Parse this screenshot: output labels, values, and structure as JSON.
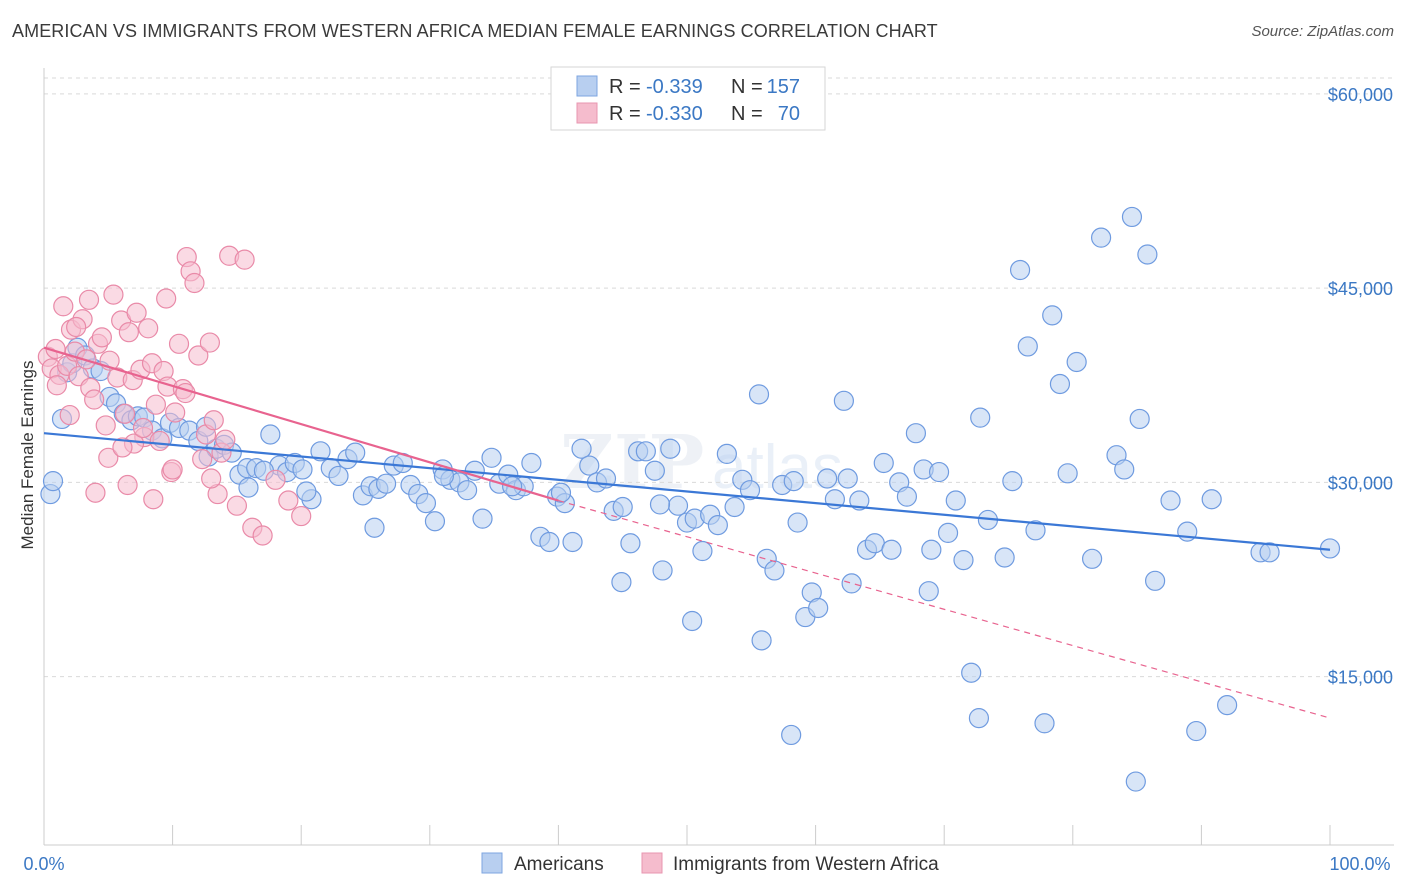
{
  "title": "AMERICAN VS IMMIGRANTS FROM WESTERN AFRICA MEDIAN FEMALE EARNINGS CORRELATION CHART",
  "source": "Source: ZipAtlas.com",
  "colors": {
    "blue": "#3b78d6",
    "blue_fill": "#b8cff0",
    "pink": "#e8638f",
    "pink_fill": "#f5bccd",
    "tick_label": "#3b78c4",
    "grid": "#d9d9d9"
  },
  "legend": {
    "r_label": "R =",
    "n_label": "N =",
    "rows": [
      {
        "series": "blue",
        "r": "-0.339",
        "n": "157"
      },
      {
        "series": "pink",
        "r": "-0.330",
        "n": "70"
      }
    ]
  },
  "bottom_legend": [
    {
      "series": "blue",
      "label": "Americans"
    },
    {
      "series": "pink",
      "label": "Immigrants from Western Africa"
    }
  ],
  "chart_data": {
    "type": "scatter",
    "ylabel": "Median Female Earnings",
    "xlim": [
      0,
      100
    ],
    "ylim": [
      2000,
      62000
    ],
    "x_tick_labels": [
      "0.0%",
      "100.0%"
    ],
    "y_ticks": [
      15000,
      30000,
      45000,
      60000
    ],
    "y_tick_labels": [
      "$15,000",
      "$30,000",
      "$45,000",
      "$60,000"
    ],
    "grid": "horizontal dashed",
    "legend_position": "top-center",
    "series": [
      {
        "name": "Americans",
        "color": "blue",
        "trend": {
          "x": [
            0,
            100
          ],
          "y": [
            33800,
            24800
          ],
          "style": "solid"
        },
        "points": [
          [
            0.5,
            29100
          ],
          [
            0.7,
            30100
          ],
          [
            1.4,
            34900
          ],
          [
            1.8,
            38500
          ],
          [
            2.2,
            39200
          ],
          [
            2.6,
            40400
          ],
          [
            3.2,
            39800
          ],
          [
            3.8,
            38800
          ],
          [
            4.4,
            38600
          ],
          [
            5.1,
            36600
          ],
          [
            5.6,
            36100
          ],
          [
            6.2,
            35300
          ],
          [
            6.8,
            34800
          ],
          [
            7.3,
            35100
          ],
          [
            7.8,
            35000
          ],
          [
            8.4,
            34000
          ],
          [
            9.2,
            33400
          ],
          [
            9.8,
            34600
          ],
          [
            10.5,
            34200
          ],
          [
            11.3,
            34000
          ],
          [
            12.0,
            33200
          ],
          [
            12.8,
            32000
          ],
          [
            13.4,
            32600
          ],
          [
            14.0,
            32900
          ],
          [
            14.6,
            32300
          ],
          [
            15.2,
            30600
          ],
          [
            15.8,
            31100
          ],
          [
            16.5,
            31100
          ],
          [
            17.6,
            33700
          ],
          [
            18.3,
            31300
          ],
          [
            18.9,
            30800
          ],
          [
            19.5,
            31500
          ],
          [
            20.1,
            31000
          ],
          [
            20.8,
            28700
          ],
          [
            21.5,
            32400
          ],
          [
            22.3,
            31100
          ],
          [
            22.9,
            30500
          ],
          [
            23.6,
            31800
          ],
          [
            24.2,
            32300
          ],
          [
            24.8,
            29000
          ],
          [
            25.4,
            29700
          ],
          [
            26.0,
            29500
          ],
          [
            26.6,
            29900
          ],
          [
            27.2,
            31300
          ],
          [
            27.9,
            31500
          ],
          [
            28.5,
            29800
          ],
          [
            29.1,
            29100
          ],
          [
            29.7,
            28400
          ],
          [
            30.4,
            27000
          ],
          [
            31.0,
            31000
          ],
          [
            31.6,
            30200
          ],
          [
            32.3,
            30000
          ],
          [
            32.9,
            29400
          ],
          [
            33.5,
            30900
          ],
          [
            34.1,
            27200
          ],
          [
            34.8,
            31900
          ],
          [
            35.4,
            29900
          ],
          [
            36.1,
            30600
          ],
          [
            36.7,
            29400
          ],
          [
            37.3,
            29700
          ],
          [
            37.9,
            31500
          ],
          [
            38.6,
            25800
          ],
          [
            39.3,
            25400
          ],
          [
            39.9,
            28900
          ],
          [
            40.5,
            28400
          ],
          [
            41.1,
            25400
          ],
          [
            41.8,
            32600
          ],
          [
            42.4,
            31300
          ],
          [
            43.0,
            30000
          ],
          [
            43.7,
            30300
          ],
          [
            44.3,
            27800
          ],
          [
            45.0,
            28100
          ],
          [
            45.6,
            25300
          ],
          [
            46.2,
            32400
          ],
          [
            46.8,
            32400
          ],
          [
            47.5,
            30900
          ],
          [
            48.1,
            23200
          ],
          [
            48.7,
            32600
          ],
          [
            49.3,
            28200
          ],
          [
            50.0,
            26900
          ],
          [
            50.6,
            27200
          ],
          [
            51.2,
            24700
          ],
          [
            51.8,
            27500
          ],
          [
            52.4,
            26700
          ],
          [
            53.1,
            32200
          ],
          [
            53.7,
            28100
          ],
          [
            54.3,
            30200
          ],
          [
            54.9,
            29400
          ],
          [
            55.6,
            36800
          ],
          [
            56.2,
            24100
          ],
          [
            56.8,
            23200
          ],
          [
            57.4,
            29800
          ],
          [
            58.1,
            10500
          ],
          [
            58.6,
            26900
          ],
          [
            59.2,
            19600
          ],
          [
            59.7,
            21500
          ],
          [
            60.2,
            20300
          ],
          [
            60.9,
            30300
          ],
          [
            61.5,
            28700
          ],
          [
            62.2,
            36300
          ],
          [
            62.8,
            22200
          ],
          [
            63.4,
            28600
          ],
          [
            64.0,
            24800
          ],
          [
            64.6,
            25300
          ],
          [
            65.3,
            31500
          ],
          [
            65.9,
            24800
          ],
          [
            66.5,
            30000
          ],
          [
            67.1,
            28900
          ],
          [
            67.8,
            33800
          ],
          [
            68.4,
            31000
          ],
          [
            69.0,
            24800
          ],
          [
            69.6,
            30800
          ],
          [
            70.3,
            26100
          ],
          [
            70.9,
            28600
          ],
          [
            71.5,
            24000
          ],
          [
            72.1,
            15300
          ],
          [
            72.8,
            35000
          ],
          [
            73.4,
            27100
          ],
          [
            74.7,
            24200
          ],
          [
            75.3,
            30100
          ],
          [
            75.9,
            46400
          ],
          [
            76.5,
            40500
          ],
          [
            77.1,
            26300
          ],
          [
            77.8,
            11400
          ],
          [
            78.4,
            42900
          ],
          [
            79.0,
            37600
          ],
          [
            79.6,
            30700
          ],
          [
            80.3,
            39300
          ],
          [
            81.5,
            24100
          ],
          [
            82.2,
            48900
          ],
          [
            83.4,
            32100
          ],
          [
            84.0,
            31000
          ],
          [
            84.6,
            50500
          ],
          [
            85.2,
            34900
          ],
          [
            85.8,
            47600
          ],
          [
            86.4,
            22400
          ],
          [
            87.6,
            28600
          ],
          [
            88.9,
            26200
          ],
          [
            89.6,
            10800
          ],
          [
            90.8,
            28700
          ],
          [
            92.0,
            12800
          ],
          [
            94.6,
            24600
          ],
          [
            95.3,
            24600
          ],
          [
            100.0,
            24900
          ],
          [
            62.5,
            30300
          ],
          [
            44.9,
            22300
          ],
          [
            50.4,
            19300
          ],
          [
            55.8,
            17800
          ],
          [
            68.8,
            21600
          ],
          [
            84.9,
            6900
          ],
          [
            72.7,
            11800
          ],
          [
            40.2,
            29200
          ],
          [
            36.4,
            29700
          ],
          [
            20.4,
            29300
          ],
          [
            15.9,
            29600
          ],
          [
            12.6,
            34300
          ],
          [
            58.3,
            30100
          ],
          [
            47.9,
            28300
          ],
          [
            31.1,
            30500
          ],
          [
            25.7,
            26500
          ],
          [
            17.1,
            30900
          ]
        ]
      },
      {
        "name": "Immigrants from Western Africa",
        "color": "pink",
        "trend": {
          "x": [
            0,
            40
          ],
          "y": [
            40400,
            28600
          ],
          "style": "solid"
        },
        "trend_extension": {
          "x": [
            40,
            100
          ],
          "y": [
            28600,
            11800
          ],
          "style": "dashed"
        },
        "points": [
          [
            0.3,
            39700
          ],
          [
            0.6,
            38800
          ],
          [
            0.9,
            40300
          ],
          [
            1.2,
            38300
          ],
          [
            1.5,
            43600
          ],
          [
            1.8,
            39000
          ],
          [
            2.1,
            41800
          ],
          [
            2.4,
            40100
          ],
          [
            2.7,
            38200
          ],
          [
            3.0,
            42600
          ],
          [
            3.3,
            39500
          ],
          [
            3.6,
            37300
          ],
          [
            3.9,
            36400
          ],
          [
            4.2,
            40700
          ],
          [
            4.5,
            41200
          ],
          [
            4.8,
            34400
          ],
          [
            5.1,
            39400
          ],
          [
            5.4,
            44500
          ],
          [
            5.7,
            38100
          ],
          [
            6.0,
            42500
          ],
          [
            6.3,
            35300
          ],
          [
            6.6,
            41600
          ],
          [
            6.9,
            37900
          ],
          [
            7.2,
            43100
          ],
          [
            7.5,
            38700
          ],
          [
            7.8,
            33500
          ],
          [
            8.1,
            41900
          ],
          [
            8.4,
            39200
          ],
          [
            8.7,
            36000
          ],
          [
            9.0,
            33200
          ],
          [
            9.3,
            38600
          ],
          [
            9.6,
            37400
          ],
          [
            9.9,
            30800
          ],
          [
            10.2,
            35400
          ],
          [
            10.5,
            40700
          ],
          [
            10.8,
            37200
          ],
          [
            11.1,
            47400
          ],
          [
            11.4,
            46300
          ],
          [
            11.7,
            45400
          ],
          [
            12.0,
            39800
          ],
          [
            12.3,
            31800
          ],
          [
            12.6,
            33700
          ],
          [
            12.9,
            40800
          ],
          [
            13.2,
            34800
          ],
          [
            13.5,
            29100
          ],
          [
            13.8,
            32300
          ],
          [
            14.1,
            33300
          ],
          [
            14.4,
            47500
          ],
          [
            15.0,
            28200
          ],
          [
            15.6,
            47200
          ],
          [
            16.2,
            26500
          ],
          [
            4.0,
            29200
          ],
          [
            5.0,
            31900
          ],
          [
            6.5,
            29800
          ],
          [
            7.0,
            33000
          ],
          [
            8.5,
            28700
          ],
          [
            9.5,
            44200
          ],
          [
            3.5,
            44100
          ],
          [
            2.5,
            42000
          ],
          [
            1.0,
            37500
          ],
          [
            2.0,
            35200
          ],
          [
            6.1,
            32700
          ],
          [
            7.7,
            34200
          ],
          [
            10.0,
            31000
          ],
          [
            11.0,
            36900
          ],
          [
            13.0,
            30300
          ],
          [
            17.0,
            25900
          ],
          [
            18.0,
            30200
          ],
          [
            19.0,
            28600
          ],
          [
            20.0,
            27400
          ]
        ]
      }
    ]
  }
}
